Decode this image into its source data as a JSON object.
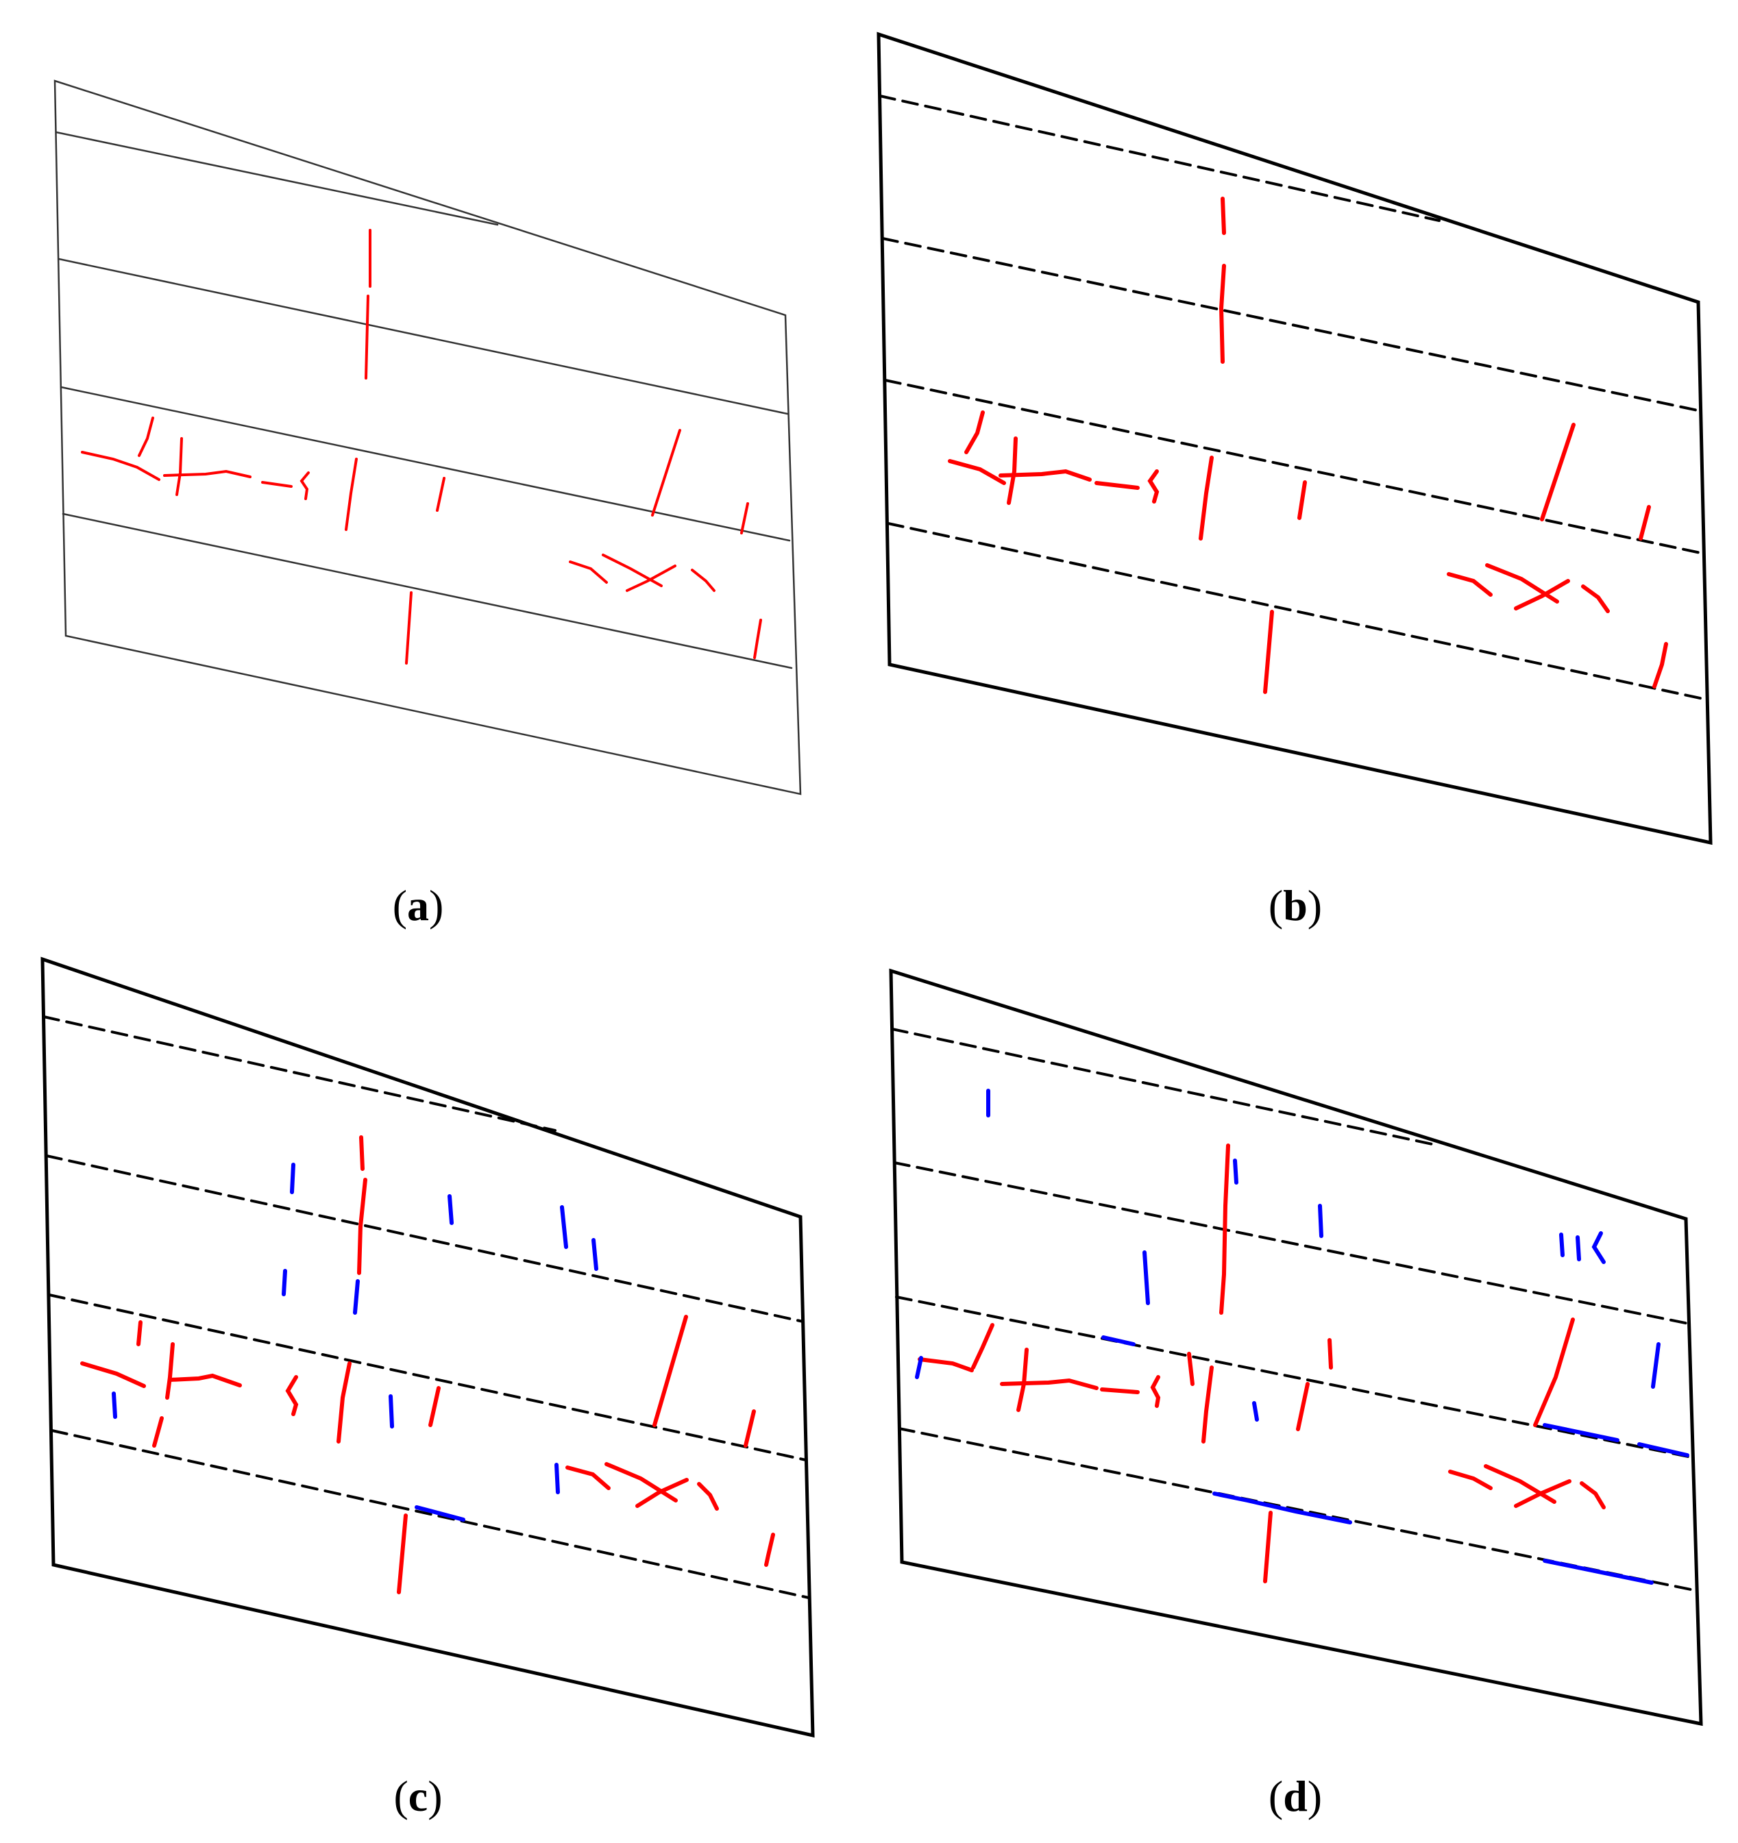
{
  "colors": {
    "crack_existing": "#ff0000",
    "crack_new": "#0000ff",
    "outline": "#000000",
    "grid_thin": "#333333"
  },
  "panels": [
    {
      "id": "a",
      "label_open": "(",
      "label_letter": "a",
      "label_close": ")",
      "style": "thin-solid"
    },
    {
      "id": "b",
      "label_open": "(",
      "label_letter": "b",
      "label_close": ")",
      "style": "bold-dashed"
    },
    {
      "id": "c",
      "label_open": "(",
      "label_letter": "c",
      "label_close": ")",
      "style": "bold-dashed"
    },
    {
      "id": "d",
      "label_open": "(",
      "label_letter": "d",
      "label_close": ")",
      "style": "bold-dashed"
    }
  ]
}
